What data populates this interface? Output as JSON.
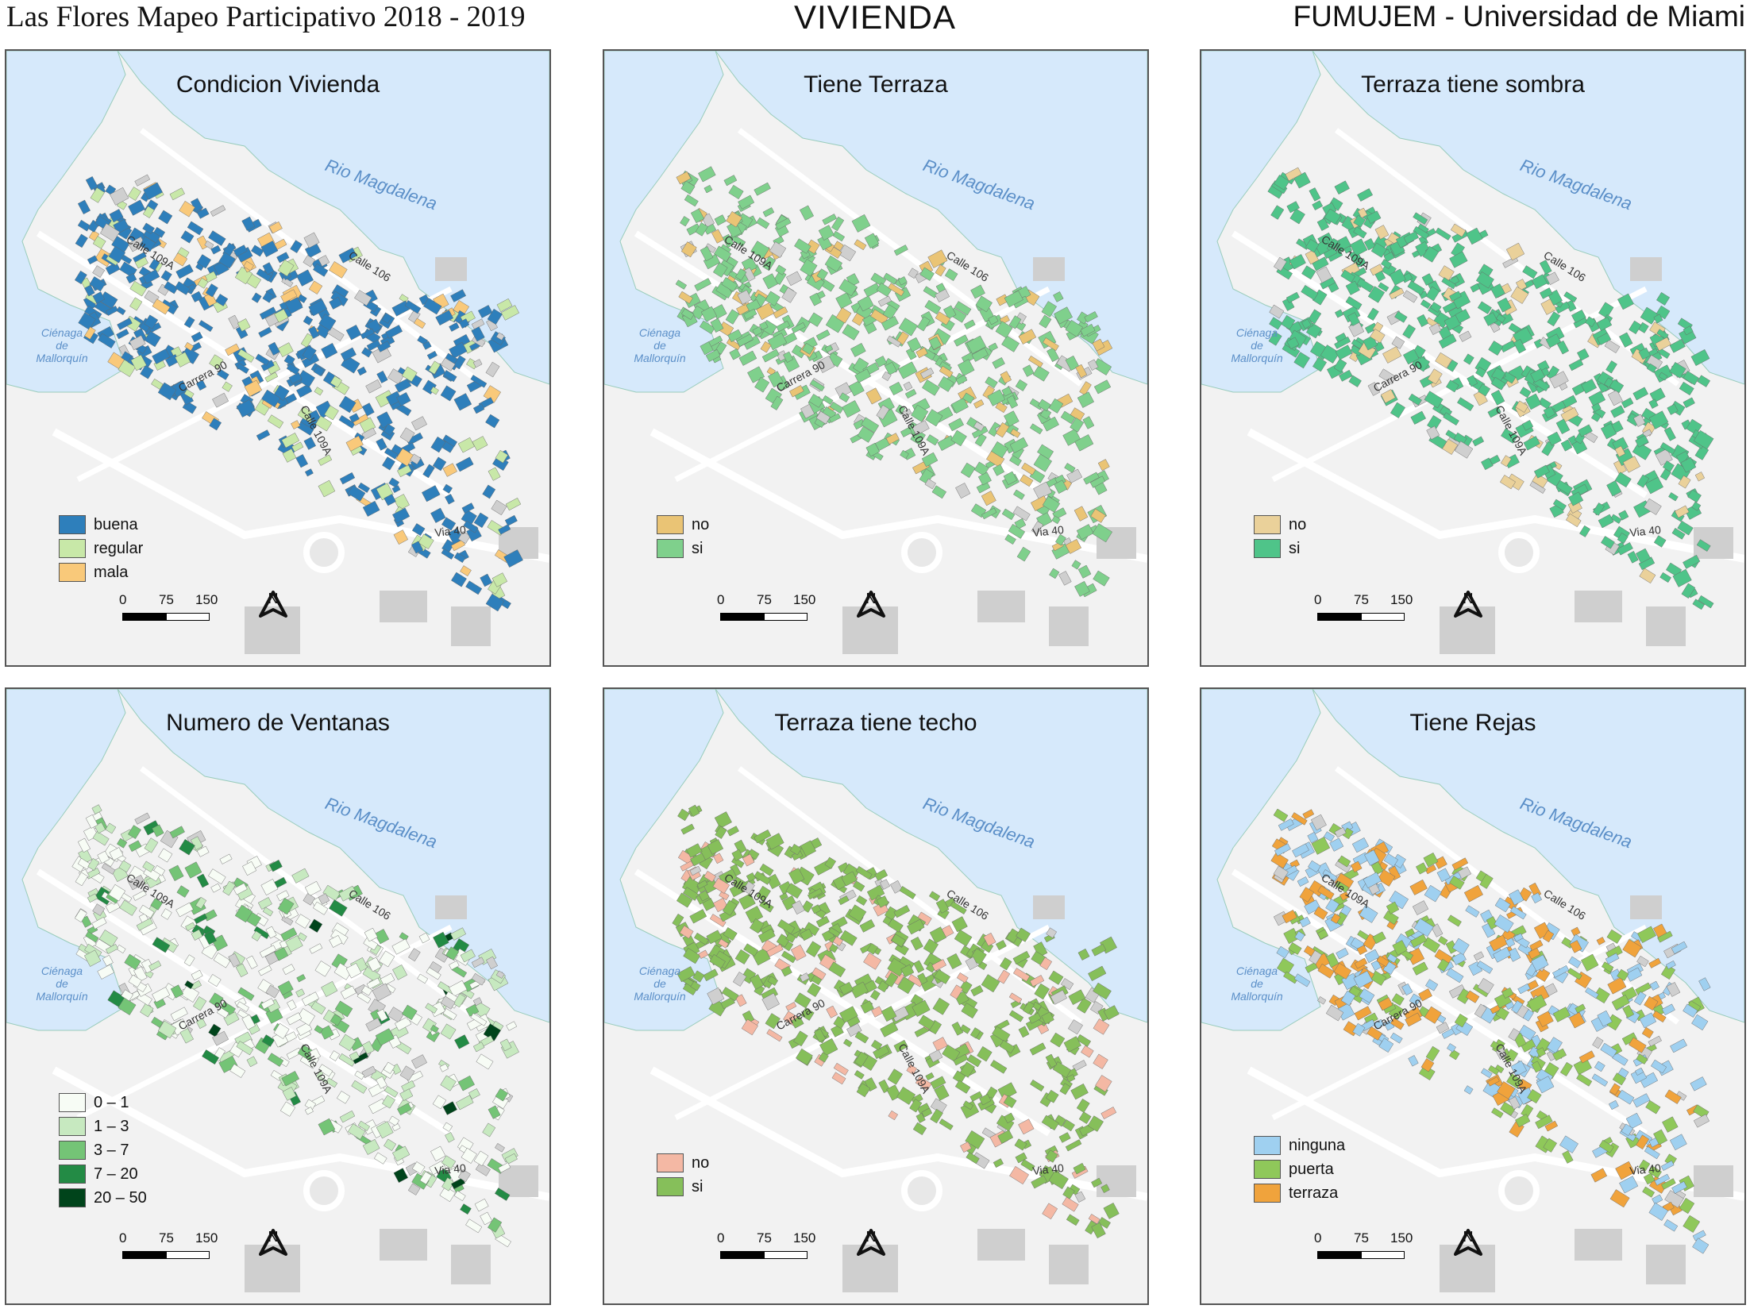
{
  "header": {
    "left": "Las Flores Mapeo Participativo 2018 - 2019",
    "center": "VIVIENDA",
    "right": "FUMUJEM - Universidad de Miami"
  },
  "map_labels": {
    "river": "Rio   Magdalena",
    "lagoon_1": "Ciénaga",
    "lagoon_2": "de",
    "lagoon_3": "Mallorquín",
    "calle_109a": "Calle 109A",
    "calle_106": "Calle 106",
    "carrera_90": "Carrera 90",
    "calle_109a_b": "Calle 109A",
    "via_40": "Via 40"
  },
  "scale": {
    "l0": "0",
    "l1": "75",
    "l2": "150 m"
  },
  "north": "N",
  "colors": {
    "water": "#d6e9fb",
    "land": "#f2f2f2",
    "road": "#ffffff",
    "gray_building": "#cfcfcf"
  },
  "panels": [
    {
      "title": "Condicion Vivienda",
      "legend": [
        {
          "label": "buena",
          "color": "#2e7fbb"
        },
        {
          "label": "regular",
          "color": "#c8e8a8"
        },
        {
          "label": "mala",
          "color": "#f9c97a"
        }
      ]
    },
    {
      "title": "Tiene Terraza",
      "legend": [
        {
          "label": "no",
          "color": "#eac475"
        },
        {
          "label": "si",
          "color": "#7fd08c"
        }
      ]
    },
    {
      "title": "Terraza tiene sombra",
      "legend": [
        {
          "label": "no",
          "color": "#ead19a"
        },
        {
          "label": "si",
          "color": "#4fc489"
        }
      ]
    },
    {
      "title": "Numero de Ventanas",
      "legend": [
        {
          "label": "0 – 1",
          "color": "#f7fcf5"
        },
        {
          "label": "1 – 3",
          "color": "#c7e9c0"
        },
        {
          "label": "3 – 7",
          "color": "#74c476"
        },
        {
          "label": "7 – 20",
          "color": "#238b45"
        },
        {
          "label": "20 – 50",
          "color": "#00441b"
        }
      ]
    },
    {
      "title": "Terraza tiene techo",
      "legend": [
        {
          "label": "no",
          "color": "#f4b8a4"
        },
        {
          "label": "si",
          "color": "#86bf5a"
        }
      ]
    },
    {
      "title": "Tiene Rejas",
      "legend": [
        {
          "label": "ninguna",
          "color": "#9fd0f0"
        },
        {
          "label": "puerta",
          "color": "#8fc85a"
        },
        {
          "label": "terraza",
          "color": "#f0a33c"
        }
      ]
    }
  ]
}
